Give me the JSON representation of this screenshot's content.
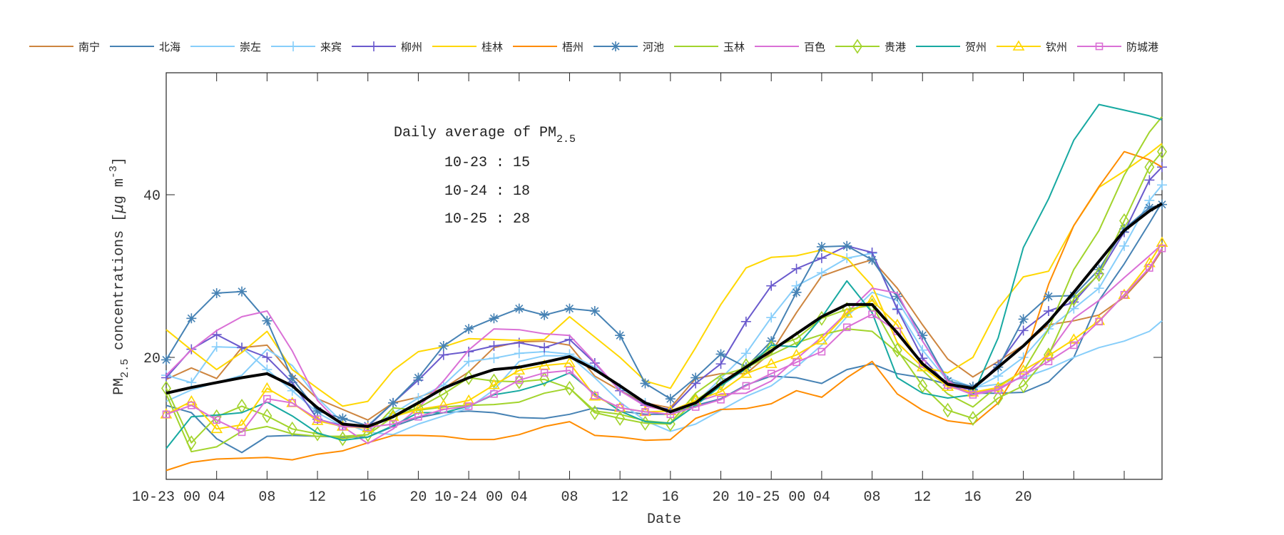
{
  "chart_data": {
    "type": "line",
    "title": "",
    "xlabel": "Date",
    "ylabel": "PM2.5 concentrations [μg m-3]",
    "ylabel_parts": {
      "pm": "PM",
      "sub": "2.5",
      "rest": " concentrations [",
      "mu": "μ",
      "unit": "g m",
      "sup": "-3",
      "close": "]"
    },
    "ylim": [
      5,
      55
    ],
    "yticks": [
      20,
      40
    ],
    "xlim": [
      "10-23 00",
      "10-26 07"
    ],
    "xticks": [
      {
        "at": "10-23 00",
        "label": "10-23 00"
      },
      {
        "at": "10-23 04",
        "label": "04"
      },
      {
        "at": "10-23 08",
        "label": "08"
      },
      {
        "at": "10-23 12",
        "label": "12"
      },
      {
        "at": "10-23 16",
        "label": "16"
      },
      {
        "at": "10-23 20",
        "label": "20"
      },
      {
        "at": "10-24 00",
        "label": "10-24 00"
      },
      {
        "at": "10-24 04",
        "label": "04"
      },
      {
        "at": "10-24 08",
        "label": "08"
      },
      {
        "at": "10-24 12",
        "label": "12"
      },
      {
        "at": "10-24 16",
        "label": "16"
      },
      {
        "at": "10-24 20",
        "label": "20"
      },
      {
        "at": "10-25 00",
        "label": "10-25 00"
      },
      {
        "at": "10-25 04",
        "label": "04"
      },
      {
        "at": "10-25 08",
        "label": "08"
      },
      {
        "at": "10-25 12",
        "label": "12"
      },
      {
        "at": "10-25 16",
        "label": "16"
      },
      {
        "at": "10-25 20",
        "label": "20"
      },
      {
        "at": "10-26 00",
        "label": ""
      },
      {
        "at": "10-26 04",
        "label": ""
      }
    ],
    "grid": false,
    "legend_placement": "top, horizontal, outside plot",
    "x": [
      "10-23 00",
      "10-23 02",
      "10-23 04",
      "10-23 06",
      "10-23 08",
      "10-23 10",
      "10-23 12",
      "10-23 14",
      "10-23 16",
      "10-23 18",
      "10-23 20",
      "10-23 22",
      "10-24 00",
      "10-24 02",
      "10-24 04",
      "10-24 06",
      "10-24 08",
      "10-24 10",
      "10-24 12",
      "10-24 14",
      "10-24 16",
      "10-24 18",
      "10-24 20",
      "10-24 22",
      "10-25 00",
      "10-25 02",
      "10-25 04",
      "10-25 06",
      "10-25 08",
      "10-25 10",
      "10-25 12",
      "10-25 14",
      "10-25 16",
      "10-25 18",
      "10-25 20",
      "10-25 22",
      "10-26 00",
      "10-26 02",
      "10-26 04",
      "10-26 06",
      "10-26 07"
    ],
    "series": [
      {
        "name": "南宁",
        "color": "#CD853F",
        "marker": "none",
        "values": [
          17.3,
          18.7,
          17.4,
          21.2,
          21.5,
          17.8,
          14.9,
          13.6,
          12.3,
          14.4,
          15.1,
          16.2,
          18.2,
          21.2,
          21.9,
          22,
          21.5,
          17.7,
          15.9,
          14.4,
          13.8,
          17.4,
          18,
          18,
          20.6,
          25.5,
          30,
          31.1,
          32,
          28.5,
          24,
          19.8,
          17.6,
          19.5,
          21.5,
          24,
          24.5,
          25.2,
          27.4,
          30.8,
          33.2
        ]
      },
      {
        "name": "北海",
        "color": "#4682B4",
        "marker": "none",
        "values": [
          14.1,
          13.2,
          10,
          8.3,
          10.3,
          10.4,
          10.3,
          10.2,
          10.2,
          11.5,
          12.6,
          13.2,
          13.4,
          13.2,
          12.6,
          12.5,
          13,
          13.8,
          13.4,
          13,
          13,
          14.1,
          14.9,
          16.6,
          17.7,
          17.5,
          16.8,
          18.5,
          19.2,
          18,
          17.5,
          16.7,
          15.6,
          15.6,
          15.7,
          17,
          20,
          27,
          31.5,
          36.5,
          39.1
        ]
      },
      {
        "name": "崇左",
        "color": "#87CEFA",
        "marker": "none",
        "values": [
          14.6,
          16,
          16.9,
          17.8,
          21,
          19,
          15,
          12,
          10.8,
          10.5,
          11.8,
          12.8,
          13.8,
          16,
          19.5,
          20.2,
          20.2,
          17.5,
          14.5,
          12.2,
          10.9,
          11.8,
          13.5,
          15.2,
          16.5,
          18.8,
          21.5,
          25,
          28,
          27,
          22,
          17.5,
          16.3,
          16.7,
          17.5,
          18.6,
          20,
          21.2,
          22,
          23.2,
          24.5
        ]
      },
      {
        "name": "来宾",
        "color": "#87CEFA",
        "marker": "plus",
        "values": [
          17.8,
          16.9,
          21.3,
          21.2,
          18.5,
          15.9,
          13.2,
          11.5,
          11.3,
          13.1,
          15,
          16.6,
          19.5,
          19.9,
          20.5,
          20.7,
          20.4,
          18.8,
          16.2,
          14.4,
          13.3,
          14.4,
          17.4,
          20.5,
          24.9,
          28.8,
          30.4,
          32.2,
          32.8,
          26,
          20.9,
          17.1,
          16.1,
          17.7,
          20,
          23.5,
          26,
          28.5,
          33.7,
          39.3,
          41.2
        ]
      },
      {
        "name": "柳州",
        "color": "#6A5ACD",
        "marker": "plus",
        "values": [
          17.5,
          21,
          22.8,
          21.2,
          20,
          16.9,
          12.4,
          11.6,
          11.5,
          14.4,
          17.2,
          20.3,
          20.7,
          21.4,
          21.8,
          21.2,
          22.2,
          19.3,
          15.9,
          14.1,
          13.6,
          16.8,
          19.2,
          24.4,
          28.8,
          30.9,
          32.2,
          33.7,
          32.9,
          25.9,
          19.9,
          16.6,
          16,
          19.1,
          23.3,
          25.7,
          26.8,
          30.3,
          35.4,
          41.8,
          43.4
        ]
      },
      {
        "name": "桂林",
        "color": "#FFD700",
        "marker": "none",
        "values": [
          23.4,
          20.9,
          18.5,
          20.6,
          23.2,
          18.5,
          16.2,
          14,
          14.6,
          18.4,
          20.7,
          21.3,
          22.3,
          22.2,
          22.1,
          22.2,
          25,
          22.5,
          20,
          17.1,
          16.2,
          21.2,
          26.5,
          31,
          32.3,
          32.5,
          33.2,
          32.2,
          28.8,
          21.8,
          18.8,
          18.1,
          20,
          26,
          29.9,
          30.6,
          36.2,
          40.9,
          42.9,
          45.1,
          46.3
        ]
      },
      {
        "name": "梧州",
        "color": "#FF8C00",
        "marker": "none",
        "values": [
          6.1,
          7.1,
          7.5,
          7.6,
          7.7,
          7.4,
          8.1,
          8.5,
          9.5,
          10.4,
          10.4,
          10.3,
          9.9,
          9.9,
          10.5,
          11.5,
          12.1,
          10.4,
          10.2,
          9.8,
          9.9,
          12.5,
          13.6,
          13.7,
          14.3,
          15.9,
          15.1,
          17.5,
          19.5,
          15.5,
          13.5,
          12.2,
          11.8,
          14.4,
          19.5,
          29,
          36.2,
          41,
          45.3,
          44.3,
          43.4
        ]
      },
      {
        "name": "河池",
        "color": "#4682B4",
        "marker": "star",
        "values": [
          19.7,
          24.8,
          27.9,
          28.1,
          24.5,
          17.4,
          13.4,
          12.5,
          11.6,
          14.4,
          17.5,
          21.4,
          23.5,
          24.8,
          26,
          25.2,
          26,
          25.7,
          22.7,
          16.8,
          14.9,
          17.5,
          20.4,
          18.8,
          22,
          28,
          33.6,
          33.7,
          32,
          27.5,
          22.7,
          17.1,
          16.4,
          18.8,
          24.7,
          27.5,
          27.6,
          30.8,
          35.8,
          38.4,
          38.8
        ]
      },
      {
        "name": "玉林",
        "color": "#A2D42C",
        "marker": "none",
        "values": [
          15.5,
          8.4,
          9,
          10.9,
          11.5,
          10.6,
          10.3,
          10.3,
          10.5,
          13.8,
          13.5,
          13.9,
          14.1,
          14.2,
          14.5,
          15.6,
          16.2,
          13.4,
          13,
          12.2,
          11.9,
          15.6,
          17.8,
          18.7,
          20.3,
          21.8,
          22.8,
          23.5,
          23.2,
          20.6,
          18.4,
          15.5,
          13.9,
          16.5,
          18.3,
          23.5,
          30.8,
          35.6,
          42.4,
          47.7,
          49.6
        ]
      },
      {
        "name": "百色",
        "color": "#DA70D6",
        "marker": "none",
        "values": [
          17.8,
          20.9,
          23.3,
          25,
          25.7,
          20.8,
          14.7,
          11.5,
          9.4,
          11.2,
          13.8,
          17.1,
          20.9,
          23.5,
          23.4,
          22.9,
          22.7,
          19.4,
          15.9,
          14,
          13.4,
          14.5,
          15.5,
          15.6,
          17.1,
          19.8,
          22.5,
          25.5,
          28.5,
          27.9,
          22,
          17.1,
          15.5,
          16.2,
          17.7,
          20.5,
          24.8,
          27,
          29.8,
          32.5,
          33.9
        ]
      },
      {
        "name": "贵港",
        "color": "#A2D42C",
        "marker": "diamond",
        "values": [
          16.2,
          9.5,
          12.7,
          14,
          12.8,
          11.2,
          10.6,
          10,
          10.5,
          12.7,
          13.8,
          15.5,
          17.5,
          17.1,
          17,
          17.3,
          16.2,
          13.2,
          12.5,
          11.9,
          11.8,
          14.7,
          16.8,
          19,
          21.2,
          22.3,
          24.8,
          25.9,
          26.4,
          20.9,
          16.5,
          13.5,
          12.5,
          15,
          16.5,
          20.3,
          27.2,
          30.2,
          36.8,
          43.4,
          45.3
        ]
      },
      {
        "name": "贺州",
        "color": "#17A9A1",
        "marker": "none",
        "values": [
          8.8,
          12.7,
          12.9,
          13.2,
          14.5,
          12.8,
          10.7,
          9.8,
          10.2,
          11.6,
          13.2,
          13.2,
          14,
          15.4,
          15.9,
          16.8,
          18.1,
          15.5,
          13.4,
          12.1,
          11.9,
          14.1,
          16.5,
          18.6,
          21.5,
          21.3,
          24.9,
          29.4,
          25.5,
          17.5,
          15.6,
          15,
          15.4,
          22.4,
          33.5,
          39.5,
          46.7,
          51.1,
          50.4,
          49.7,
          49.2
        ]
      },
      {
        "name": "钦州",
        "color": "#FFD700",
        "marker": "triangle",
        "values": [
          13,
          14.6,
          11.2,
          11.7,
          16.2,
          14.4,
          12.2,
          11.5,
          11.3,
          12.7,
          13.6,
          14.1,
          14.7,
          16.6,
          18.4,
          19,
          19.3,
          15.2,
          13.8,
          13.3,
          13.4,
          14.7,
          15.8,
          18,
          19.2,
          20.3,
          22.1,
          25.4,
          27,
          24,
          18.8,
          16.4,
          15.7,
          16.3,
          18.4,
          20.2,
          22.2,
          24.5,
          27.7,
          31.6,
          34.1
        ]
      },
      {
        "name": "防城港",
        "color": "#DA70D6",
        "marker": "square",
        "values": [
          13,
          14.1,
          12.3,
          10.8,
          14.9,
          14.4,
          12.4,
          11.5,
          11.4,
          11.8,
          12.7,
          13.6,
          14,
          15.5,
          17.2,
          18.1,
          18.4,
          15.3,
          13.8,
          13.3,
          13,
          13.9,
          14.8,
          16.5,
          18,
          19.4,
          20.7,
          23.7,
          25.3,
          23.2,
          19.2,
          16.6,
          15.4,
          16,
          17.8,
          19.5,
          21.5,
          24.4,
          27.7,
          31,
          33.4
        ]
      }
    ],
    "average_series": {
      "color": "#000000",
      "values": [
        15.6,
        16.3,
        16.9,
        17.5,
        18,
        16.5,
        13.8,
        11.8,
        11.5,
        12.7,
        14.4,
        16.2,
        17.5,
        18.5,
        18.8,
        19.4,
        20.1,
        18.5,
        16.5,
        14.4,
        13.3,
        14.4,
        16.8,
        18.8,
        20.8,
        22.9,
        25,
        26.5,
        26.5,
        23,
        19.2,
        16.7,
        16.2,
        18.8,
        21.4,
        24.4,
        28,
        31.8,
        35.6,
        38,
        38.9
      ]
    },
    "annotation": {
      "title_prefix": "Daily average of PM",
      "title_sub": "2.5",
      "lines": [
        "10-23 : 15",
        "10-24 : 18",
        "10-25 : 28"
      ]
    }
  }
}
